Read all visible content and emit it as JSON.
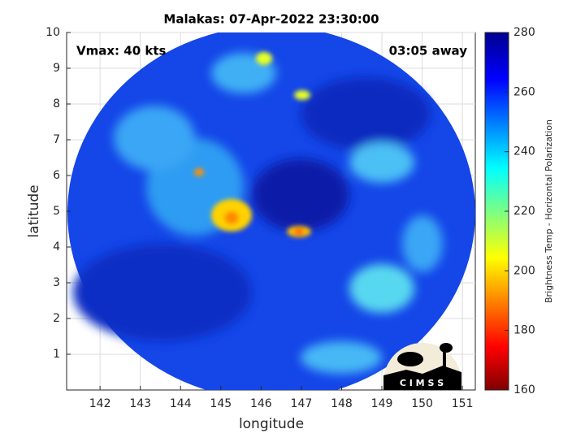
{
  "chart_data": {
    "type": "image",
    "title": "Malakas: 07-Apr-2022 23:30:00",
    "annotations": [
      "Vmax: 40 kts",
      "03:05 away"
    ],
    "xlabel": "longitude",
    "ylabel": "latitude",
    "xlim": [
      141.17,
      151.32
    ],
    "xticks": [
      142,
      143,
      144,
      145,
      146,
      147,
      148,
      149,
      150,
      151
    ],
    "ylim": [
      0,
      10
    ],
    "yticks": [
      1,
      2,
      3,
      4,
      5,
      6,
      7,
      8,
      9,
      10
    ],
    "grid": true,
    "colorbar": {
      "label": "Brightness Temp - Horizontal Polarization",
      "lim": [
        160,
        280
      ],
      "ticks": [
        160,
        180,
        200,
        220,
        240,
        260,
        280
      ]
    },
    "logo": "C I M S S"
  }
}
